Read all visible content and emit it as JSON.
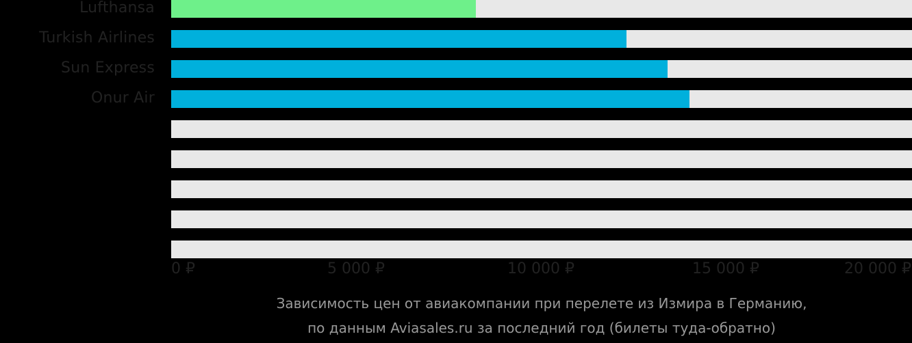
{
  "chart_data": {
    "type": "bar",
    "orientation": "horizontal",
    "categories": [
      "Lufthansa",
      "Turkish Airlines",
      "Sun Express",
      "Onur Air",
      "",
      "",
      "",
      "",
      ""
    ],
    "values": [
      8240,
      12310,
      13430,
      14020,
      null,
      null,
      null,
      null,
      null
    ],
    "bar_colors": [
      "#6ef08a",
      "#00b0dc",
      "#00b0dc",
      "#00b0dc",
      null,
      null,
      null,
      null,
      null
    ],
    "track_color": "#e8e8e8",
    "title": "Зависимость цен от авиакомпании при перелете из Измира в Германию, по данным Aviasales.ru за последний год (билеты туда-обратно)",
    "xlabel": "",
    "ylabel": "",
    "xlim": [
      0,
      20000
    ],
    "x_ticks": [
      "0 ₽",
      "5 000 ₽",
      "10 000 ₽",
      "15 000 ₽",
      "20 000 ₽"
    ],
    "x_tick_values": [
      0,
      5000,
      10000,
      15000,
      20000
    ],
    "grid": false,
    "legend": null
  },
  "rows": [
    {
      "label": "Lufthansa",
      "value": 8240,
      "color": "#6ef08a"
    },
    {
      "label": "Turkish Airlines",
      "value": 12310,
      "color": "#00b0dc"
    },
    {
      "label": "Sun Express",
      "value": 13430,
      "color": "#00b0dc"
    },
    {
      "label": "Onur Air",
      "value": 14020,
      "color": "#00b0dc"
    },
    {
      "label": "",
      "value": 0,
      "color": "#00b0dc"
    },
    {
      "label": "",
      "value": 0,
      "color": "#00b0dc"
    },
    {
      "label": "",
      "value": 0,
      "color": "#00b0dc"
    },
    {
      "label": "",
      "value": 0,
      "color": "#00b0dc"
    },
    {
      "label": "",
      "value": 0,
      "color": "#00b0dc"
    }
  ],
  "axis": {
    "ticks": [
      "0 ₽",
      "5 000 ₽",
      "10 000 ₽",
      "15 000 ₽",
      "20 000 ₽"
    ]
  },
  "caption": {
    "line1": "Зависимость цен от авиакомпании при перелете из Измира в Германию,",
    "line2": "по данным Aviasales.ru за последний год (билеты туда-обратно)"
  }
}
